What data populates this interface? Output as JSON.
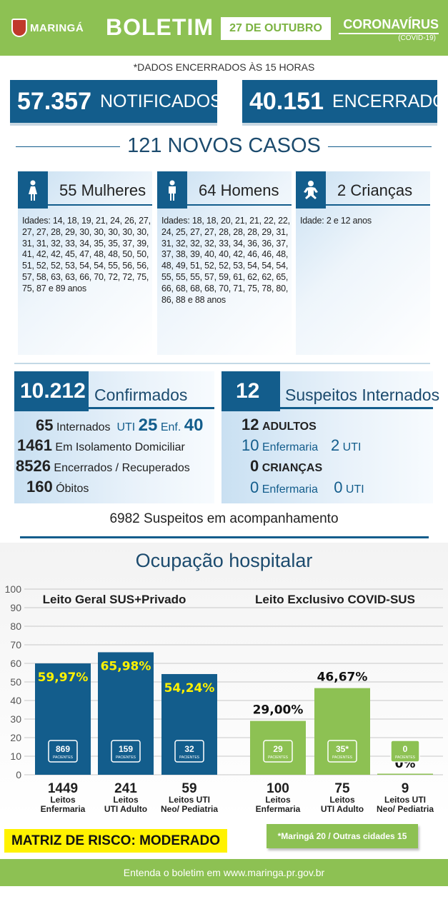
{
  "header": {
    "city": "MARINGÁ",
    "title": "BOLETIM",
    "date": "27 DE OUTUBRO",
    "topic": "CORONAVÍRUS",
    "topic_sub": "(COVID-19)"
  },
  "note_closed": "*DADOS ENCERRADOS ÀS 15 HORAS",
  "totals": {
    "notified_value": "57.357",
    "notified_label": "NOTIFICADOS",
    "closed_value": "40.151",
    "closed_label": "ENCERRADOS"
  },
  "new_cases_title": "121 NOVOS CASOS",
  "groups": [
    {
      "title": "55 Mulheres",
      "ages": "Idades: 14, 18, 19, 21, 24, 26, 27, 27, 27, 28, 29, 30, 30, 30, 30, 30, 31, 31, 32, 33, 34, 35, 35, 37, 39, 41, 42, 42, 45, 47, 48, 48, 50, 50, 51, 52, 52, 53, 54, 54, 55, 56, 56, 57, 58, 63, 63, 66, 70, 72, 72, 75, 75, 87 e 89 anos"
    },
    {
      "title": "64 Homens",
      "ages": "Idades: 18, 18, 20, 21, 21, 22, 22, 24, 25, 27, 27, 28, 28, 28, 29, 31, 31, 32, 32, 32, 33, 34, 36, 36, 37, 37, 38, 39, 40, 40, 42, 46, 46, 48, 48, 49, 51, 52, 52, 53, 54, 54, 54, 55, 55, 55, 57, 59, 61, 62, 62, 65, 66, 68, 68, 68, 70, 71, 75, 78, 80, 86, 88 e 88 anos"
    },
    {
      "title": "2 Crianças",
      "ages": "Idade: 2 e 12 anos"
    }
  ],
  "confirmed": {
    "value": "10.212",
    "label": "Confirmados",
    "hosp_value": "65",
    "hosp_label": "Internados",
    "uti_label": "UTI",
    "uti_value": "25",
    "enf_label": "Enf.",
    "enf_value": "40",
    "isolation_value": "1461",
    "isolation_label": "Em Isolamento Domiciliar",
    "recovered_value": "8526",
    "recovered_label": "Encerrados / Recuperados",
    "deaths_value": "160",
    "deaths_label": "Óbitos"
  },
  "suspects": {
    "value": "12",
    "label": "Suspeitos Internados",
    "adults_value": "12",
    "adults_label": "ADULTOS",
    "adults_enf_value": "10",
    "enf_label": "Enfermaria",
    "adults_uti_value": "2",
    "uti_label": "UTI",
    "children_value": "0",
    "children_label": "CRIANÇAS",
    "children_enf_value": "0",
    "children_uti_value": "0"
  },
  "monitoring": "6982 Suspeitos em acompanhamento",
  "occupancy_title": "Ocupação hospitalar",
  "chart_data": {
    "type": "bar",
    "ylim": [
      0,
      100
    ],
    "yticks": [
      "0",
      "10",
      "20",
      "30",
      "40",
      "50",
      "60",
      "70",
      "80",
      "90",
      "100"
    ],
    "grid": true,
    "patients_label": "PACIENTES",
    "groups": [
      {
        "name": "Leito Geral SUS+Privado",
        "color": "#135d8c",
        "bars": [
          {
            "value": 59.97,
            "label": "59,97%",
            "patients": "869",
            "beds": "1449",
            "cat1": "Leitos",
            "cat2": "Enfermaria"
          },
          {
            "value": 65.98,
            "label": "65,98%",
            "patients": "159",
            "beds": "241",
            "cat1": "Leitos",
            "cat2": "UTI Adulto"
          },
          {
            "value": 54.24,
            "label": "54,24%",
            "patients": "32",
            "beds": "59",
            "cat1": "Leitos UTI",
            "cat2": "Neo/ Pediatria"
          }
        ]
      },
      {
        "name": "Leito Exclusivo COVID-SUS",
        "color": "#8dc153",
        "bars": [
          {
            "value": 29.0,
            "label": "29,00%",
            "patients": "29",
            "beds": "100",
            "cat1": "Leitos",
            "cat2": "Enfermaria"
          },
          {
            "value": 46.67,
            "label": "46,67%",
            "patients": "35*",
            "beds": "75",
            "cat1": "Leitos",
            "cat2": "UTI Adulto"
          },
          {
            "value": 0,
            "label": "0%",
            "patients": "0",
            "beds": "9",
            "cat1": "Leitos UTI",
            "cat2": "Neo/ Pediatria"
          }
        ]
      }
    ]
  },
  "risk_matrix": "MATRIZ DE RISCO: MODERADO",
  "covid_note": "*Maringá 20 / Outras cidades 15",
  "footer": "Entenda o boletim em www.maringa.pr.gov.br",
  "colors": {
    "green": "#8dc153",
    "blue": "#135d8c",
    "yellow": "#fff200",
    "highlight": "#fff200"
  }
}
